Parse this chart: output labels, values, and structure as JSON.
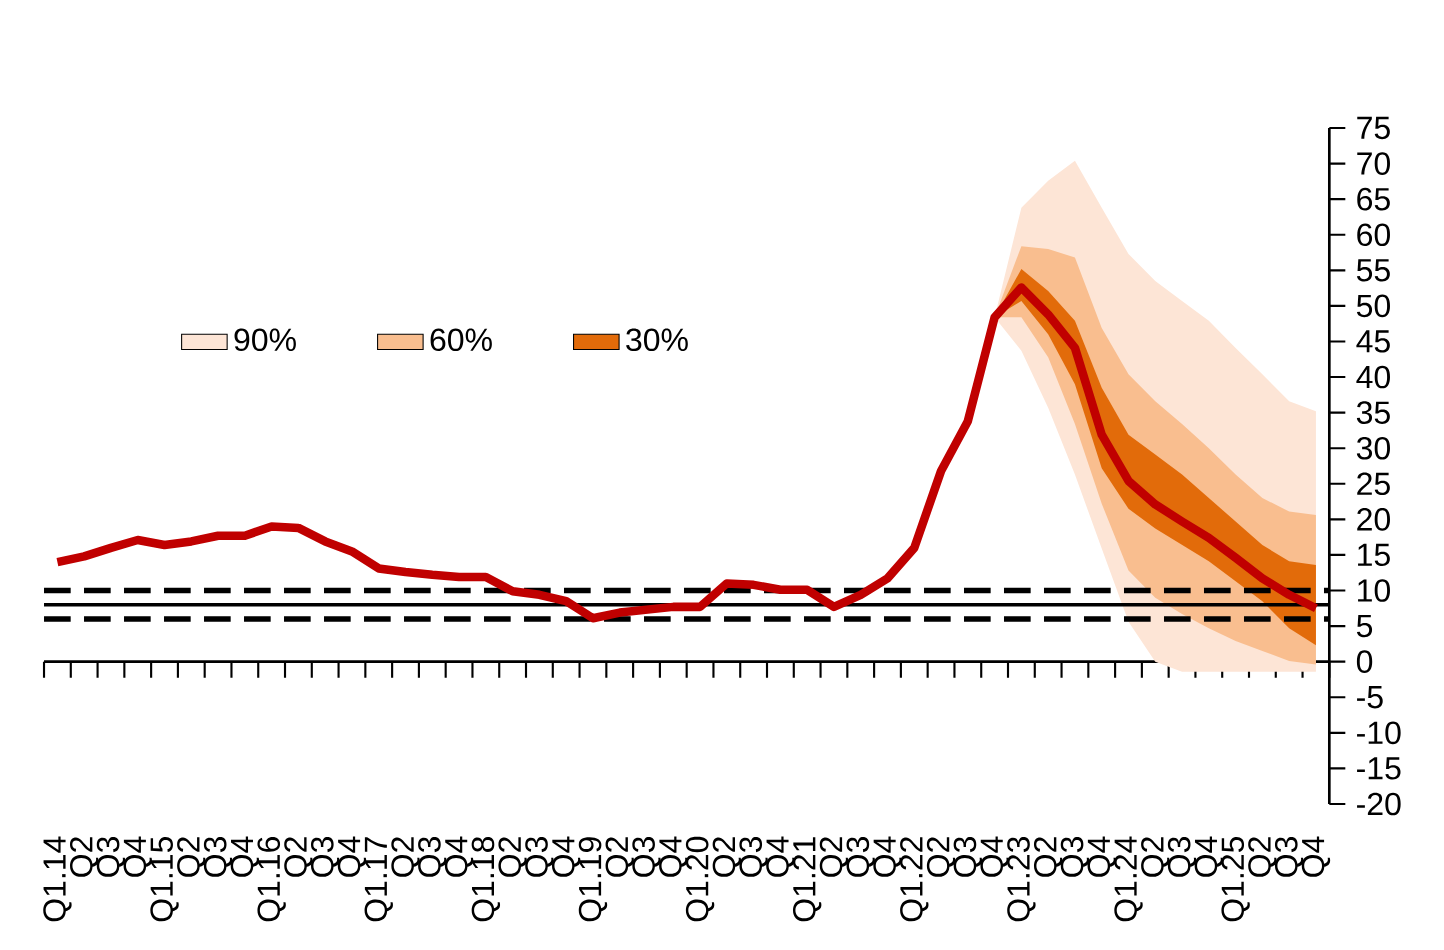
{
  "chart_data": {
    "type": "line",
    "categories": [
      "Q1.14",
      "Q2",
      "Q3",
      "Q4",
      "Q1.15",
      "Q2",
      "Q3",
      "Q4",
      "Q1.16",
      "Q2",
      "Q3",
      "Q4",
      "Q1.17",
      "Q2",
      "Q3",
      "Q4",
      "Q1.18",
      "Q2",
      "Q3",
      "Q4",
      "Q1.19",
      "Q2",
      "Q3",
      "Q4",
      "Q1.20",
      "Q2",
      "Q3",
      "Q4",
      "Q1.21",
      "Q2",
      "Q3",
      "Q4",
      "Q1.22",
      "Q2",
      "Q3",
      "Q4",
      "Q1.23",
      "Q2",
      "Q3",
      "Q4",
      "Q1.24",
      "Q2",
      "Q3",
      "Q4",
      "Q1.25",
      "Q2",
      "Q3",
      "Q4"
    ],
    "series": [
      {
        "name": "90%",
        "color": "#fde5d6",
        "values": [
          null,
          null,
          null,
          null,
          null,
          null,
          null,
          null,
          null,
          null,
          null,
          null,
          null,
          null,
          null,
          null,
          null,
          null,
          null,
          null,
          null,
          null,
          null,
          null,
          null,
          null,
          null,
          null,
          null,
          null,
          null,
          null,
          null,
          null,
          null,
          null,
          null,
          null,
          null,
          null,
          null,
          null,
          null,
          null,
          null,
          null,
          null,
          null
        ],
        "lower": [
          null,
          null,
          null,
          null,
          null,
          null,
          null,
          null,
          null,
          null,
          null,
          null,
          null,
          null,
          null,
          null,
          null,
          null,
          null,
          null,
          null,
          null,
          null,
          null,
          null,
          null,
          null,
          null,
          null,
          null,
          null,
          null,
          null,
          null,
          null,
          48.4,
          43.7,
          35.7,
          26.3,
          15.9,
          5.6,
          0,
          -1.4,
          -1.4,
          -1.4,
          -1.4,
          -1.4,
          -1.4
        ],
        "upper": [
          null,
          null,
          null,
          null,
          null,
          null,
          null,
          null,
          null,
          null,
          null,
          null,
          null,
          null,
          null,
          null,
          null,
          null,
          null,
          null,
          null,
          null,
          null,
          null,
          null,
          null,
          null,
          null,
          null,
          null,
          null,
          null,
          null,
          null,
          null,
          48.4,
          63.8,
          67.6,
          70.4,
          63.8,
          57.3,
          53.5,
          50.7,
          47.9,
          44.1,
          40.4,
          36.6,
          35.2
        ]
      },
      {
        "name": "60%",
        "color": "#f9be8f",
        "values": [
          null,
          null,
          null,
          null,
          null,
          null,
          null,
          null,
          null,
          null,
          null,
          null,
          null,
          null,
          null,
          null,
          null,
          null,
          null,
          null,
          null,
          null,
          null,
          null,
          null,
          null,
          null,
          null,
          null,
          null,
          null,
          null,
          null,
          null,
          null,
          null,
          null,
          null,
          null,
          null,
          null,
          null,
          null,
          null,
          null,
          null,
          null,
          null
        ],
        "lower": [
          null,
          null,
          null,
          null,
          null,
          null,
          null,
          null,
          null,
          null,
          null,
          null,
          null,
          null,
          null,
          null,
          null,
          null,
          null,
          null,
          null,
          null,
          null,
          null,
          null,
          null,
          null,
          null,
          null,
          null,
          null,
          null,
          null,
          null,
          null,
          48.4,
          48.4,
          42.8,
          33.4,
          22.2,
          12.8,
          9.0,
          6.7,
          4.7,
          2.9,
          1.5,
          0.1,
          -0.4
        ],
        "upper": [
          null,
          null,
          null,
          null,
          null,
          null,
          null,
          null,
          null,
          null,
          null,
          null,
          null,
          null,
          null,
          null,
          null,
          null,
          null,
          null,
          null,
          null,
          null,
          null,
          null,
          null,
          null,
          null,
          null,
          null,
          null,
          null,
          null,
          null,
          null,
          48.4,
          58.4,
          58.0,
          56.8,
          46.9,
          40.4,
          36.6,
          33.4,
          30.0,
          26.3,
          23.0,
          21.1,
          20.6
        ]
      },
      {
        "name": "30%",
        "color": "#e26b0a",
        "values": [
          null,
          null,
          null,
          null,
          null,
          null,
          null,
          null,
          null,
          null,
          null,
          null,
          null,
          null,
          null,
          null,
          null,
          null,
          null,
          null,
          null,
          null,
          null,
          null,
          null,
          null,
          null,
          null,
          null,
          null,
          null,
          null,
          null,
          null,
          null,
          null,
          null,
          null,
          null,
          null,
          null,
          null,
          null,
          null,
          null,
          null,
          null,
          null
        ],
        "lower": [
          null,
          null,
          null,
          null,
          null,
          null,
          null,
          null,
          null,
          null,
          null,
          null,
          null,
          null,
          null,
          null,
          null,
          null,
          null,
          null,
          null,
          null,
          null,
          null,
          null,
          null,
          null,
          null,
          null,
          null,
          null,
          null,
          null,
          null,
          null,
          48.4,
          50.7,
          46.0,
          39.0,
          27.2,
          21.5,
          18.7,
          16.4,
          14.1,
          11.3,
          8.5,
          4.7,
          2.3
        ],
        "upper": [
          null,
          null,
          null,
          null,
          null,
          null,
          null,
          null,
          null,
          null,
          null,
          null,
          null,
          null,
          null,
          null,
          null,
          null,
          null,
          null,
          null,
          null,
          null,
          null,
          null,
          null,
          null,
          null,
          null,
          null,
          null,
          null,
          null,
          null,
          null,
          48.4,
          55.2,
          52.1,
          47.9,
          38.5,
          31.9,
          29.1,
          26.3,
          23.0,
          19.7,
          16.4,
          14.1,
          13.6
        ]
      },
      {
        "color": "#c00000",
        "values": [
          14,
          14.8,
          16,
          17.1,
          16.4,
          16.9,
          17.7,
          17.7,
          19,
          18.8,
          16.9,
          15.5,
          13.1,
          12.6,
          12.2,
          11.9,
          11.9,
          9.9,
          9.4,
          8.5,
          6.1,
          6.9,
          7.3,
          7.7,
          7.7,
          11,
          10.8,
          10.1,
          10.1,
          7.7,
          9.4,
          11.7,
          16,
          26.8,
          33.8,
          48.4,
          52.6,
          48.8,
          44.1,
          31.9,
          25.4,
          22.1,
          19.7,
          17.4,
          14.6,
          11.7,
          9.4,
          7.5
        ]
      }
    ],
    "ylim": [
      -20,
      75
    ],
    "yticks": [
      -20,
      -15,
      -10,
      -5,
      0,
      5,
      10,
      15,
      20,
      25,
      30,
      35,
      40,
      45,
      50,
      55,
      60,
      65,
      70,
      75
    ],
    "ref_lines": [
      {
        "axis": "y",
        "value": 10,
        "color": "#000000",
        "line_style": "dashed"
      },
      {
        "axis": "y",
        "value": 8,
        "color": "#000000",
        "line_style": "solid"
      },
      {
        "axis": "y",
        "value": 6,
        "color": "#000000",
        "line_style": "dashed"
      }
    ],
    "legend": "top left"
  }
}
